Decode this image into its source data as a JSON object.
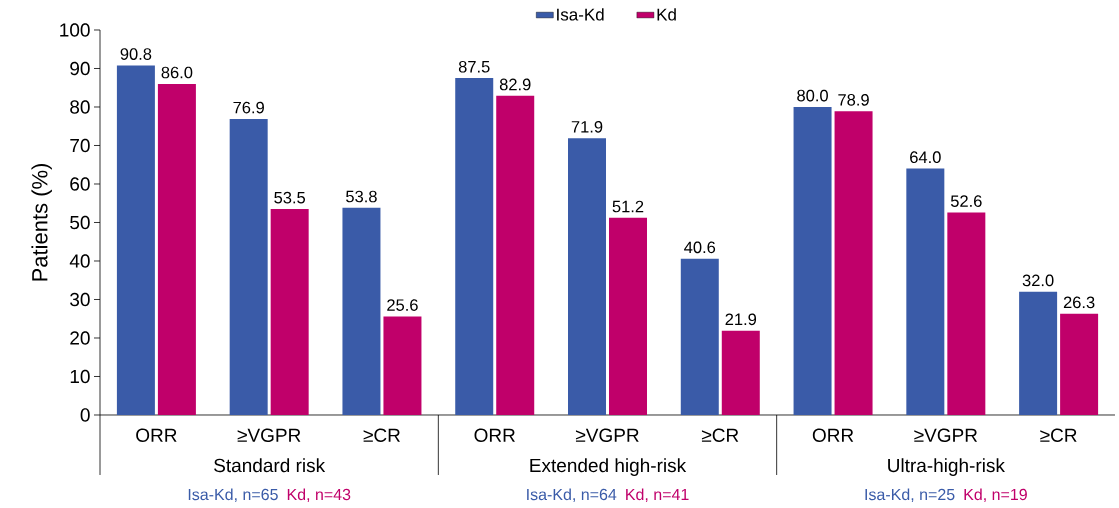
{
  "chart_data": {
    "type": "bar",
    "ylabel": "Patients (%)",
    "categories": [
      "ORR",
      "≥VGPR",
      "≥CR",
      "ORR",
      "≥VGPR",
      "≥CR",
      "ORR",
      "≥VGPR",
      "≥CR"
    ],
    "series": [
      {
        "name": "Isa-Kd",
        "color": "#3a5ba8",
        "values": [
          90.8,
          76.9,
          53.8,
          87.5,
          71.9,
          40.6,
          80.0,
          64.0,
          32.0
        ],
        "value_labels": [
          "90.8",
          "76.9",
          "53.8",
          "87.5",
          "71.9",
          "40.6",
          "80.0",
          "64.0",
          "32.0"
        ]
      },
      {
        "name": "Kd",
        "color": "#c0006a",
        "values": [
          86.0,
          53.5,
          25.6,
          82.9,
          51.2,
          21.9,
          78.9,
          52.6,
          26.3
        ],
        "value_labels": [
          "86.0",
          "53.5",
          "25.6",
          "82.9",
          "51.2",
          "21.9",
          "78.9",
          "52.6",
          "26.3"
        ]
      }
    ],
    "ylim": [
      0,
      100
    ],
    "yticks": [
      0,
      10,
      20,
      30,
      40,
      50,
      60,
      70,
      80,
      90,
      100
    ],
    "grid": false,
    "legend": "top",
    "annotations": [
      "Standard risk",
      "Extended high-risk",
      "Ultra-high-risk",
      "Isa-Kd, n=65",
      "Kd, n=43",
      "Isa-Kd, n=64",
      "Kd, n=41",
      "Isa-Kd, n=25",
      "Kd, n=19"
    ]
  }
}
